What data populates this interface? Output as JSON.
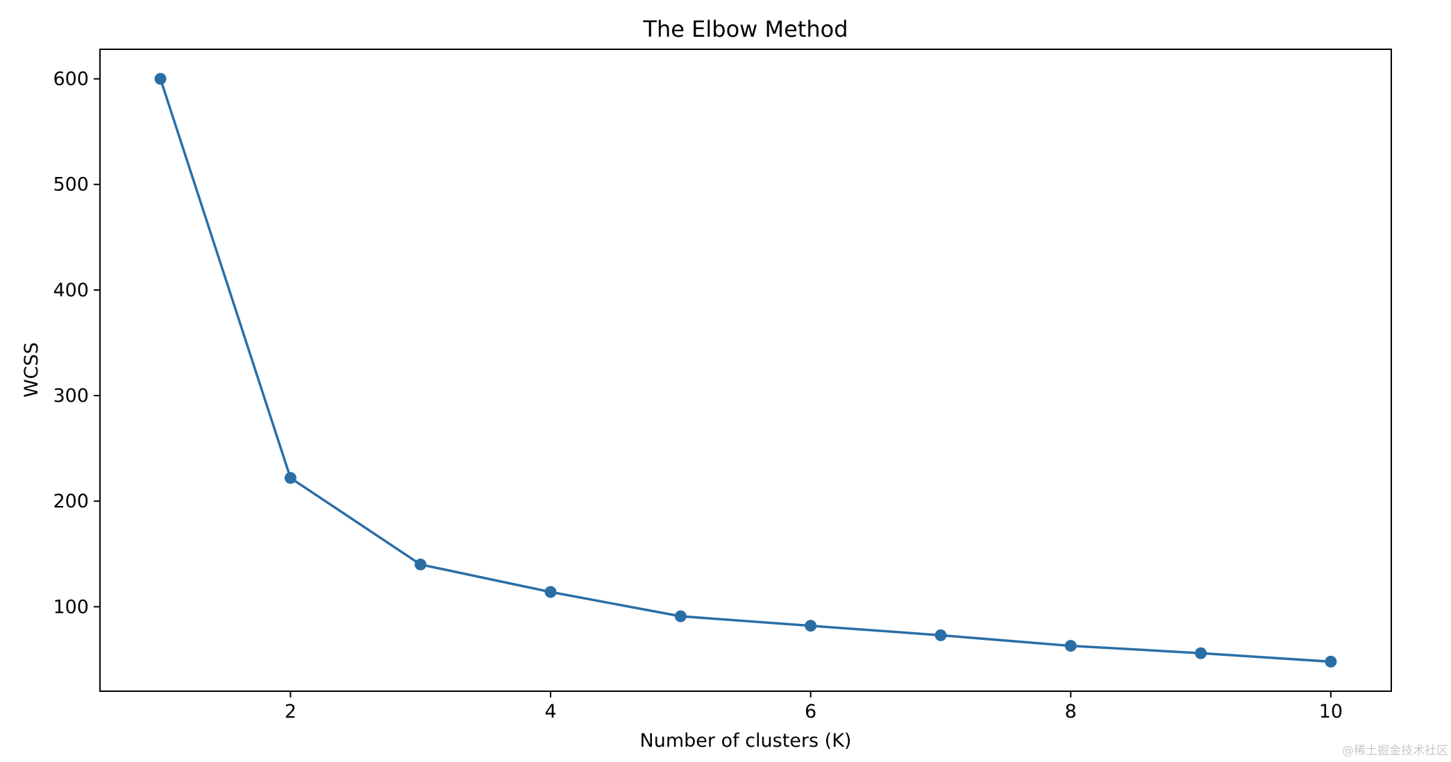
{
  "chart_data": {
    "type": "line",
    "title": "The Elbow Method",
    "xlabel": "Number of clusters (K)",
    "ylabel": "WCSS",
    "x": [
      1,
      2,
      3,
      4,
      5,
      6,
      7,
      8,
      9,
      10
    ],
    "series": [
      {
        "values": [
          600,
          222,
          140,
          114,
          91,
          82,
          73,
          63,
          56,
          48
        ]
      }
    ],
    "xlim": [
      0.535,
      10.465
    ],
    "ylim": [
      20,
      628
    ],
    "xticks": [
      2,
      4,
      6,
      8,
      10
    ],
    "yticks": [
      100,
      200,
      300,
      400,
      500,
      600
    ],
    "marker": "circle",
    "color": "#2a6ea6",
    "grid": false,
    "legend": "none"
  },
  "watermark": "@稀土掘金技术社区"
}
